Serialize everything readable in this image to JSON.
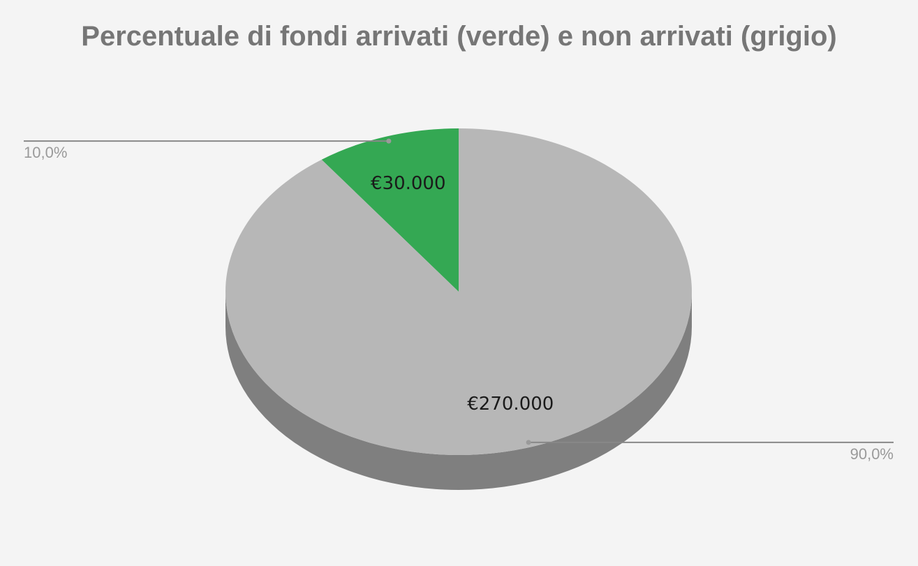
{
  "chart_data": {
    "type": "pie",
    "title": "Percentuale di fondi arrivati (verde) e non arrivati (grigio)",
    "style": "3d",
    "slices": [
      {
        "value": 30000,
        "value_label": "€30.000",
        "percent_label": "10,0%",
        "color": "#34a853"
      },
      {
        "value": 270000,
        "value_label": "€270.000",
        "percent_label": "90,0%",
        "color": "#b7b7b7"
      }
    ],
    "legend": "none"
  },
  "colors": {
    "background": "#f4f4f4",
    "side_dark": "#7f7f7f",
    "leader_line": "#888888"
  }
}
